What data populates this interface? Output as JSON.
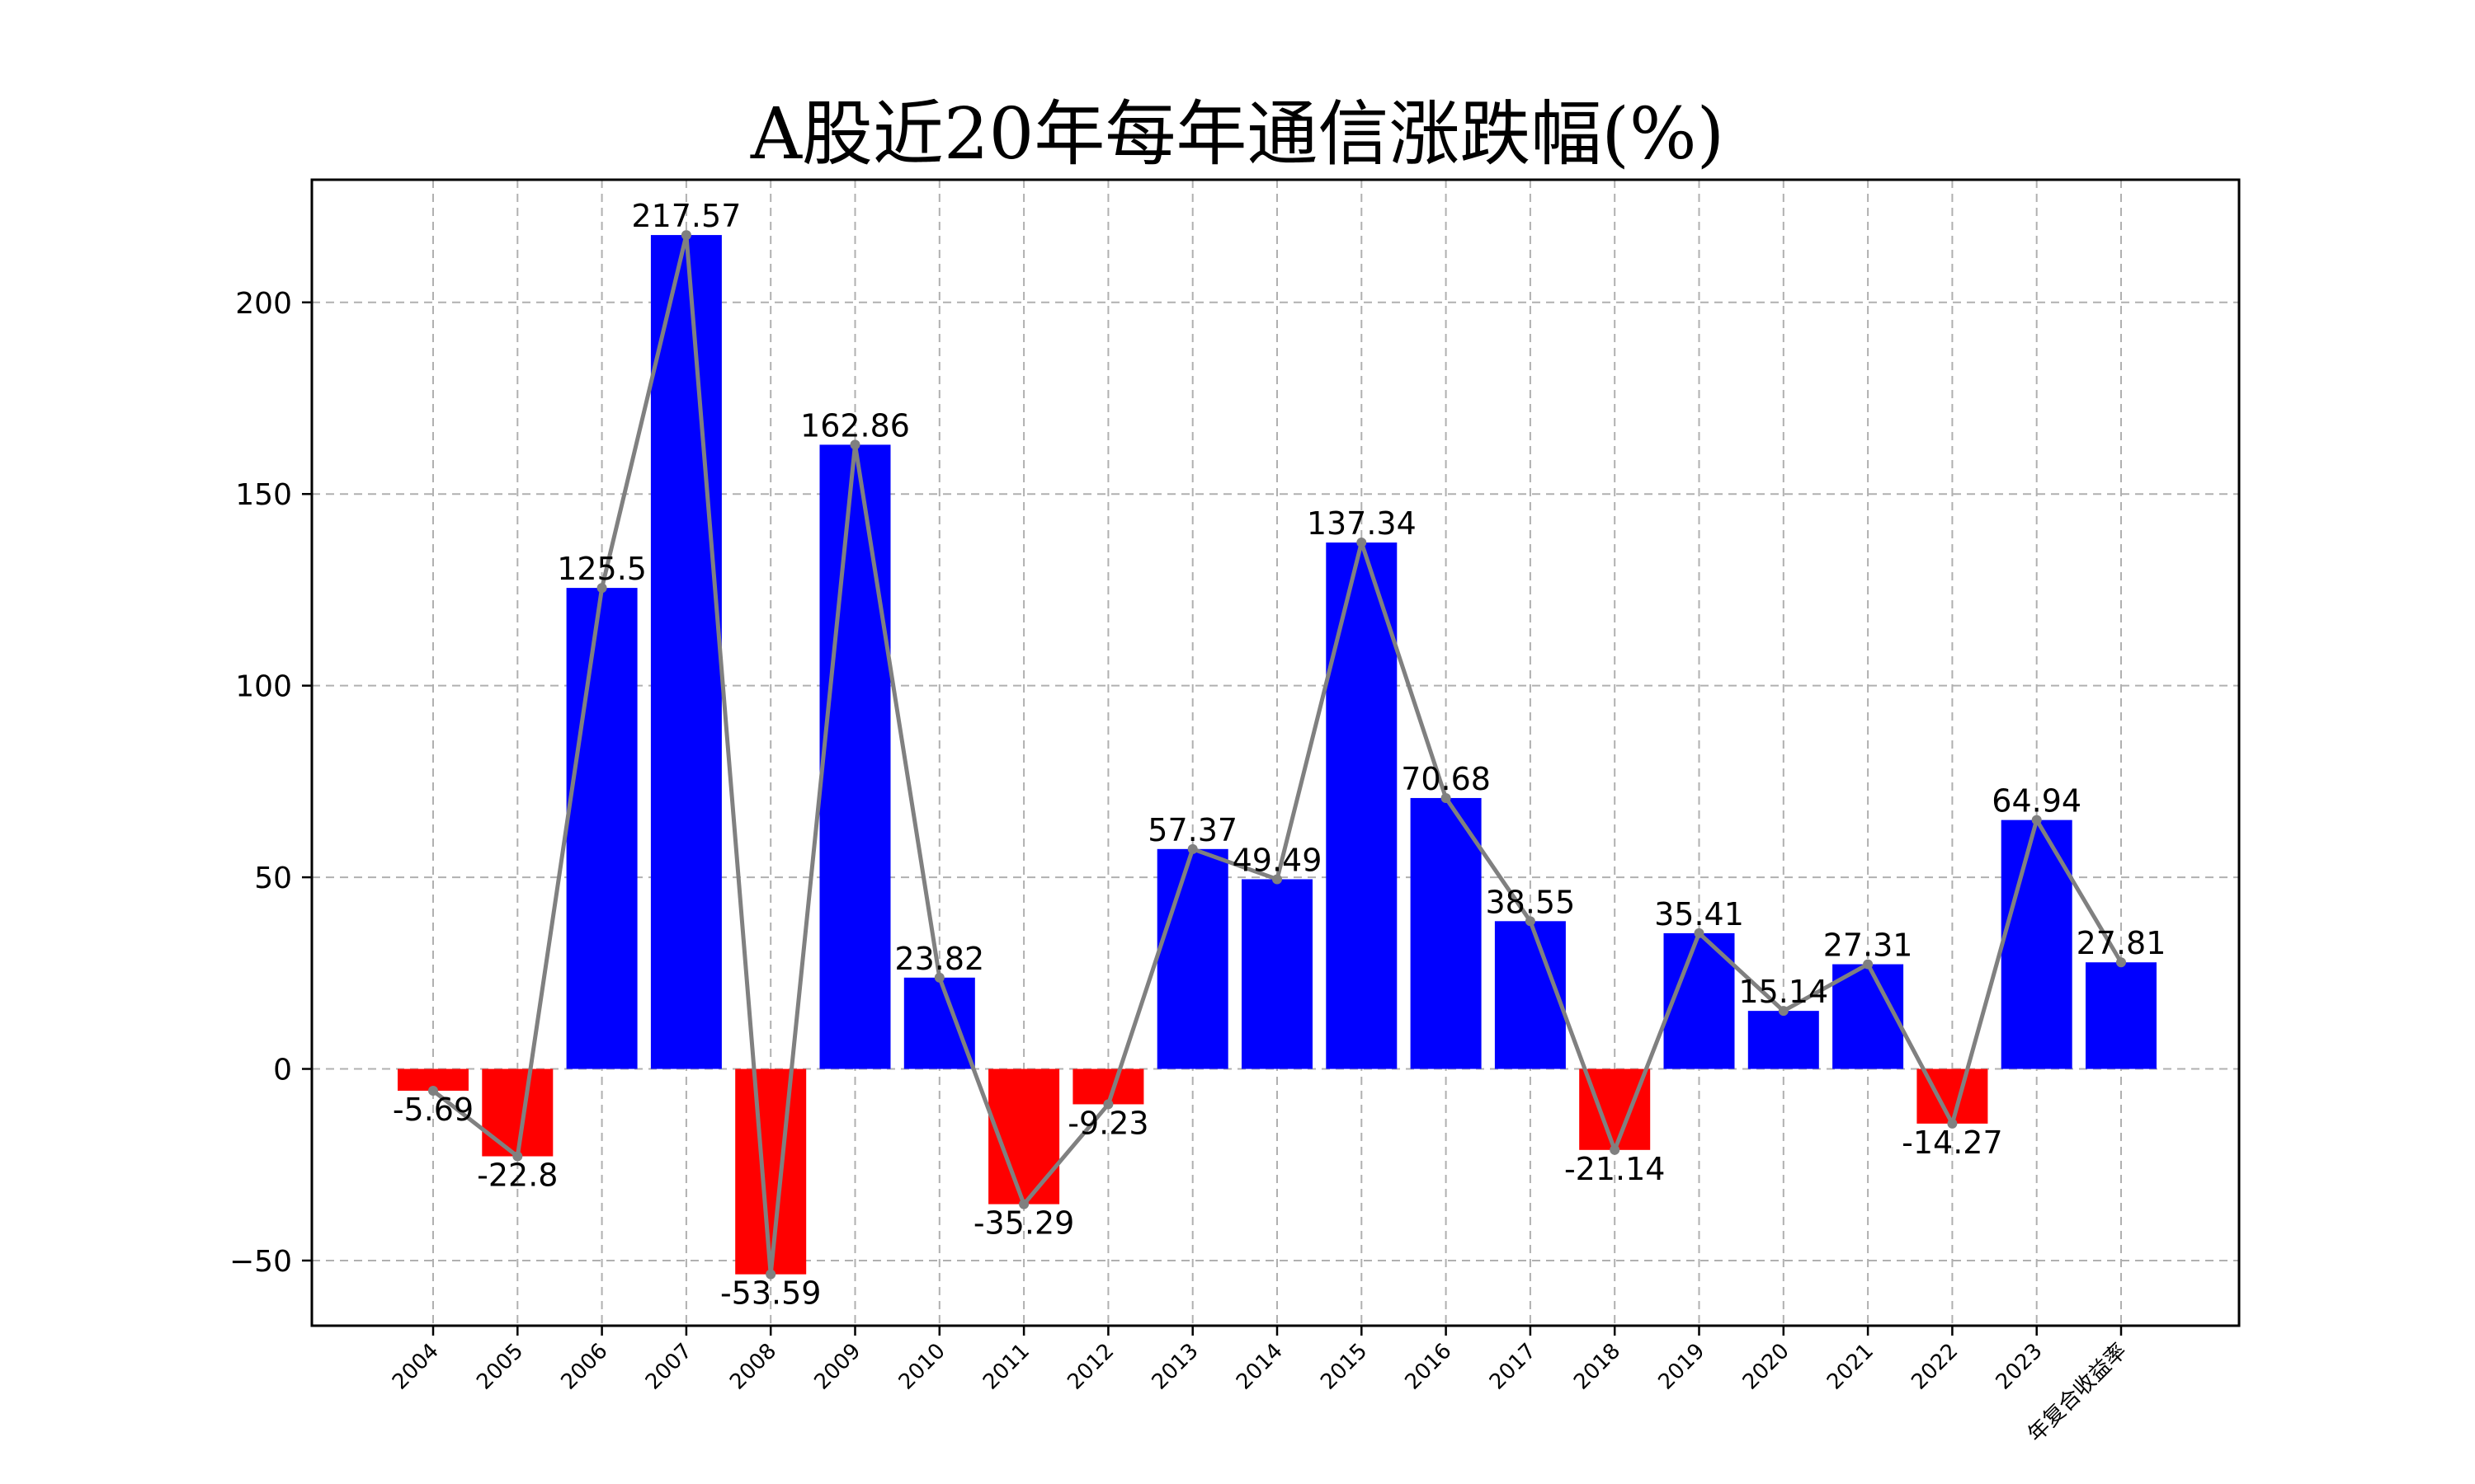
{
  "chart_data": {
    "type": "bar",
    "title": "A股近20年每年通信涨跌幅(%)",
    "xlabel": "",
    "ylabel": "",
    "categories": [
      "2004",
      "2005",
      "2006",
      "2007",
      "2008",
      "2009",
      "2010",
      "2011",
      "2012",
      "2013",
      "2014",
      "2015",
      "2016",
      "2017",
      "2018",
      "2019",
      "2020",
      "2021",
      "2022",
      "2023",
      "年复合收益率"
    ],
    "values": [
      -5.69,
      -22.8,
      125.5,
      217.57,
      -53.59,
      162.86,
      23.82,
      -35.29,
      -9.23,
      57.37,
      49.49,
      137.34,
      70.68,
      38.55,
      -21.14,
      35.41,
      15.14,
      27.31,
      -14.27,
      64.94,
      27.81
    ],
    "data_labels": [
      "-5.69",
      "-22.8",
      "125.5",
      "217.57",
      "-53.59",
      "162.86",
      "23.82",
      "-35.29",
      "-9.23",
      "57.37",
      "49.49",
      "137.34",
      "70.68",
      "38.55",
      "-21.14",
      "35.41",
      "15.14",
      "27.31",
      "-14.27",
      "64.94",
      "27.81"
    ],
    "ylim": [
      -67,
      232
    ],
    "yticks": [
      -50,
      0,
      50,
      100,
      150,
      200
    ],
    "ytick_labels": [
      "−50",
      "0",
      "50",
      "100",
      "150",
      "200"
    ],
    "overlay_line": true,
    "grid": true,
    "colors": {
      "positive_bar": "#0000ff",
      "negative_bar": "#ff0000",
      "line": "#808080"
    }
  }
}
